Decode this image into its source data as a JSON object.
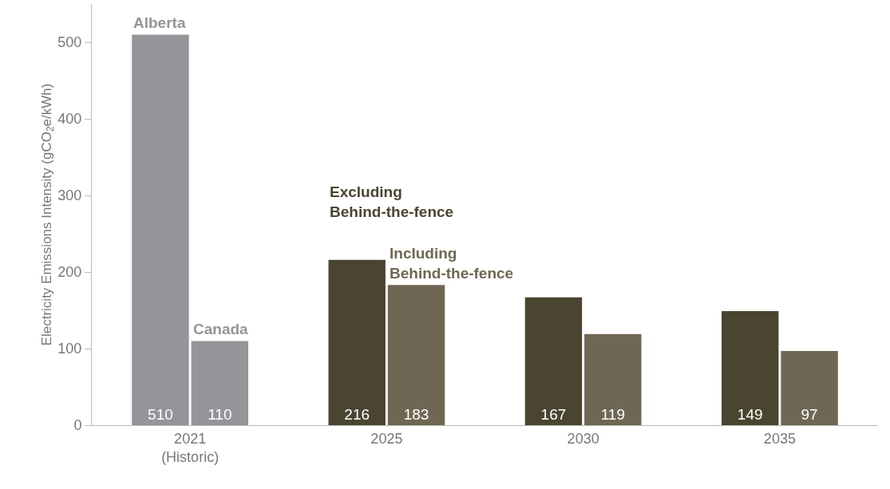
{
  "chart_data": {
    "type": "bar",
    "ylabel": "Electricity Emissions Intensity (gCO$_{2}$e/kWh)",
    "categories": [
      "2021\n(Historic)",
      "2025",
      "2030",
      "2035"
    ],
    "series": [
      {
        "name": "Alberta",
        "color": "#939598",
        "values": [
          510,
          null,
          null,
          null
        ]
      },
      {
        "name": "Canada",
        "color": "#939598",
        "values": [
          110,
          null,
          null,
          null
        ]
      },
      {
        "name": "Excluding\nBehind-the-fence",
        "color": "#4a4530",
        "values": [
          null,
          216,
          167,
          149
        ]
      },
      {
        "name": "Including\nBehind-the-fence",
        "color": "#6e6753",
        "values": [
          null,
          183,
          119,
          97
        ]
      }
    ],
    "ylim": [
      0,
      550
    ],
    "yticks": [
      0,
      100,
      200,
      300,
      400,
      500
    ],
    "grid": false,
    "legend": false,
    "data_labels": true
  }
}
